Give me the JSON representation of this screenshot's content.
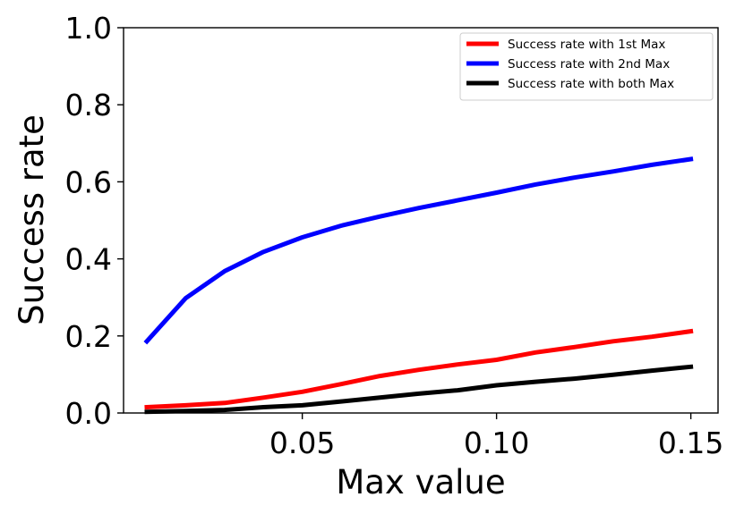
{
  "chart_data": {
    "type": "line",
    "title": "",
    "xlabel": "Max value",
    "ylabel": "Success rate",
    "xlim": [
      0.004,
      0.157
    ],
    "ylim": [
      0.0,
      1.0
    ],
    "x_ticks": [
      0.05,
      0.1,
      0.15
    ],
    "x_tick_labels": [
      "0.05",
      "0.10",
      "0.15"
    ],
    "y_ticks": [
      0.0,
      0.2,
      0.4,
      0.6,
      0.8,
      1.0
    ],
    "y_tick_labels": [
      "0.0",
      "0.2",
      "0.4",
      "0.6",
      "0.8",
      "1.0"
    ],
    "grid": false,
    "legend_position": "top-right",
    "x": [
      0.01,
      0.02,
      0.03,
      0.04,
      0.05,
      0.06,
      0.07,
      0.08,
      0.09,
      0.1,
      0.11,
      0.12,
      0.13,
      0.14,
      0.15
    ],
    "series": [
      {
        "name": "Success rate with 1st Max",
        "color": "#ff0000",
        "values": [
          0.015,
          0.02,
          0.026,
          0.04,
          0.055,
          0.075,
          0.096,
          0.112,
          0.126,
          0.138,
          0.157,
          0.171,
          0.186,
          0.198,
          0.212
        ]
      },
      {
        "name": "Success rate with 2nd Max",
        "color": "#0000ff",
        "values": [
          0.186,
          0.298,
          0.368,
          0.418,
          0.456,
          0.486,
          0.51,
          0.532,
          0.552,
          0.572,
          0.593,
          0.611,
          0.627,
          0.644,
          0.659
        ]
      },
      {
        "name": "Success rate with both Max",
        "color": "#000000",
        "values": [
          0.003,
          0.005,
          0.008,
          0.015,
          0.02,
          0.03,
          0.04,
          0.05,
          0.059,
          0.072,
          0.081,
          0.089,
          0.099,
          0.11,
          0.12
        ]
      }
    ]
  }
}
